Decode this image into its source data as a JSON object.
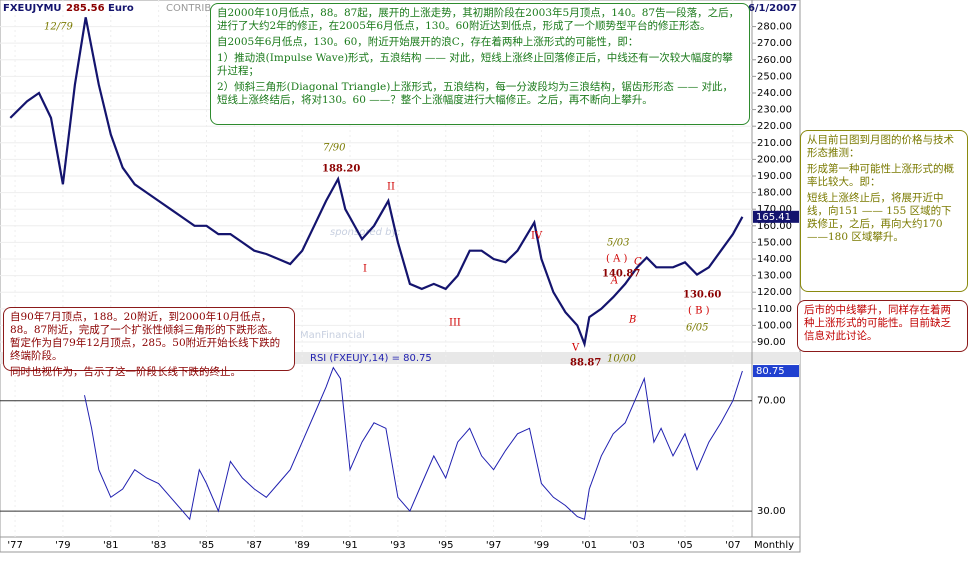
{
  "chart_data": [
    {
      "type": "line",
      "symbol": "FXEUJYMU",
      "header_value": "285.56",
      "currency": "Euro",
      "source": "CONTRIB",
      "date": "6/1/2007",
      "watermark": "ManFinancial",
      "watermark_note": "sponsored by:",
      "x_unit": "Monthly",
      "current_label": "165.41",
      "color": "#14146e",
      "grid": true,
      "xlim": [
        1976.37,
        2007.8
      ],
      "xticks": [
        {
          "value": 1977,
          "label": "'77"
        },
        {
          "value": 1979,
          "label": "'79"
        },
        {
          "value": 1981,
          "label": "'81"
        },
        {
          "value": 1983,
          "label": "'83"
        },
        {
          "value": 1985,
          "label": "'85"
        },
        {
          "value": 1987,
          "label": "'87"
        },
        {
          "value": 1989,
          "label": "'89"
        },
        {
          "value": 1991,
          "label": "'91"
        },
        {
          "value": 1993,
          "label": "'93"
        },
        {
          "value": 1995,
          "label": "'95"
        },
        {
          "value": 1997,
          "label": "'97"
        },
        {
          "value": 1999,
          "label": "'99"
        },
        {
          "value": 2001,
          "label": "'01"
        },
        {
          "value": 2003,
          "label": "'03"
        },
        {
          "value": 2005,
          "label": "'05"
        },
        {
          "value": 2007,
          "label": "'07"
        }
      ],
      "ylim": [
        84,
        296
      ],
      "yticks": [
        {
          "value": 90,
          "label": "90.00"
        },
        {
          "value": 100,
          "label": "100.00"
        },
        {
          "value": 110,
          "label": "110.00"
        },
        {
          "value": 120,
          "label": "120.00"
        },
        {
          "value": 130,
          "label": "130.00"
        },
        {
          "value": 140,
          "label": "140.00"
        },
        {
          "value": 150,
          "label": "150.00"
        },
        {
          "value": 160,
          "label": "160.00"
        },
        {
          "value": 170,
          "label": "170.00"
        },
        {
          "value": 180,
          "label": "180.00"
        },
        {
          "value": 190,
          "label": "190.00"
        },
        {
          "value": 200,
          "label": "200.00"
        },
        {
          "value": 210,
          "label": "210.00"
        },
        {
          "value": 220,
          "label": "220.00"
        },
        {
          "value": 230,
          "label": "230.00"
        },
        {
          "value": 240,
          "label": "240.00"
        },
        {
          "value": 250,
          "label": "250.00"
        },
        {
          "value": 260,
          "label": "260.00"
        },
        {
          "value": 270,
          "label": "270.00"
        },
        {
          "value": 280,
          "label": "280.00"
        }
      ],
      "x": [
        1976.8,
        1977.5,
        1978.0,
        1978.5,
        1979.0,
        1979.5,
        1979.95,
        1980.5,
        1981.0,
        1981.5,
        1982.0,
        1982.5,
        1983.0,
        1983.5,
        1984.0,
        1984.5,
        1985.0,
        1985.5,
        1986.0,
        1986.5,
        1987.0,
        1987.5,
        1988.0,
        1988.5,
        1989.0,
        1989.5,
        1990.0,
        1990.5,
        1990.8,
        1991.0,
        1991.5,
        1992.0,
        1992.6,
        1993.0,
        1993.5,
        1994.0,
        1994.5,
        1995.0,
        1995.5,
        1996.0,
        1996.5,
        1997.0,
        1997.5,
        1998.0,
        1998.7,
        1999.0,
        1999.5,
        2000.0,
        2000.5,
        2000.8,
        2001.0,
        2001.5,
        2002.0,
        2002.5,
        2003.0,
        2003.4,
        2003.8,
        2004.5,
        2005.0,
        2005.5,
        2006.0,
        2006.5,
        2007.0,
        2007.4
      ],
      "values": [
        225,
        235,
        240,
        225,
        185,
        245,
        285.56,
        245,
        215,
        195,
        185,
        180,
        175,
        170,
        165,
        160,
        160,
        155,
        155,
        150,
        145,
        143,
        140,
        137,
        145,
        160,
        175,
        188.2,
        170,
        165,
        152,
        160,
        175,
        150,
        125,
        122,
        125,
        122,
        130,
        145,
        145,
        140,
        138,
        145,
        162,
        140,
        120,
        108,
        100,
        88.87,
        105,
        110,
        117,
        125,
        135,
        140.87,
        135,
        135,
        138,
        130.6,
        135,
        145,
        155,
        165.41
      ],
      "annotations": [
        "12/79",
        "7/90",
        "188.20",
        "II",
        "I",
        "III",
        "IV",
        "V",
        "88.87",
        "10/00",
        "5/03",
        "( A )",
        "140.87",
        "C",
        "A",
        "B",
        "130.60",
        "( B )",
        "6/05"
      ],
      "notes": [
        [
          "自2000年10月低点，88。87起，展开的上涨走势，其初期阶段在2003年5月顶点，140。87告一段落，之后，进行了大约2年的修正，在2005年6月低点，130。60附近达到低点，形成了一个顺势型平台的修正形态。",
          "自2005年6月低点，130。60，附近开始展开的浪C，存在着两种上涨形式的可能性，即：",
          "1）推动浪(Impulse Wave)形式，五浪结构 —— 对此，短线上涨终止回落修正后，中线还有一次较大幅度的攀升过程；",
          "2）倾斜三角形(Diagonal Triangle)上涨形式，五浪结构，每一分波段均为三浪结构，锯齿形形态 —— 对此，短线上涨终结后，将对130。60 ——？整个上涨幅度进行大幅修正。之后，再不断向上攀升。"
        ],
        [
          "从目前日图到月图的价格与技术形态推测：",
          "形成第一种可能性上涨形式的概率比较大。即：",
          "短线上涨终止后，将展开近中线，向151 —— 155 区域的下跌修正，之后，再向大约170 ——180 区域攀升。"
        ],
        [
          "后市的中线攀升，同样存在着两种上涨形式的可能性。目前缺乏信息对此讨论。"
        ],
        [
          "自90年7月顶点，188。20附近，到2000年10月低点，88。87附近，完成了一个扩张性倾斜三角形的下跌形态。暂定作为自79年12月顶点，285。50附近开始长线下跌的终端阶段。",
          "同时也视作为，告示了这一阶段长线下跌的终止。"
        ]
      ]
    },
    {
      "type": "line",
      "title": "RSI (FXEUJY,14) = 80.75",
      "current_label": "80.75",
      "color": "#2020b0",
      "xlim": [
        1976.37,
        2007.8
      ],
      "ylim": [
        20.6,
        83.3
      ],
      "yticks": [
        {
          "value": 30,
          "label": "30.00"
        },
        {
          "value": 70,
          "label": "70.00"
        }
      ],
      "x": [
        1979.9,
        1980.2,
        1980.5,
        1981.0,
        1981.5,
        1982.0,
        1982.5,
        1983.0,
        1983.5,
        1984.0,
        1984.3,
        1984.7,
        1985.0,
        1985.5,
        1986.0,
        1986.5,
        1987.0,
        1987.5,
        1988.0,
        1988.5,
        1989.0,
        1989.5,
        1990.0,
        1990.3,
        1990.6,
        1991.0,
        1991.5,
        1992.0,
        1992.5,
        1993.0,
        1993.5,
        1994.0,
        1994.5,
        1995.0,
        1995.5,
        1996.0,
        1996.5,
        1997.0,
        1997.5,
        1998.0,
        1998.5,
        1999.0,
        1999.5,
        2000.0,
        2000.5,
        2000.8,
        2001.0,
        2001.5,
        2002.0,
        2002.5,
        2003.0,
        2003.3,
        2003.7,
        2004.0,
        2004.5,
        2005.0,
        2005.5,
        2006.0,
        2006.5,
        2007.0,
        2007.4
      ],
      "values": [
        72,
        60,
        45,
        35,
        38,
        45,
        42,
        40,
        35,
        30,
        27,
        45,
        40,
        30,
        48,
        42,
        38,
        35,
        40,
        45,
        55,
        65,
        75,
        82,
        78,
        45,
        55,
        62,
        60,
        35,
        30,
        40,
        50,
        42,
        55,
        60,
        50,
        45,
        52,
        58,
        60,
        40,
        35,
        32,
        28,
        27,
        38,
        50,
        58,
        62,
        72,
        78,
        55,
        60,
        50,
        58,
        45,
        55,
        62,
        70,
        80.75
      ]
    }
  ]
}
